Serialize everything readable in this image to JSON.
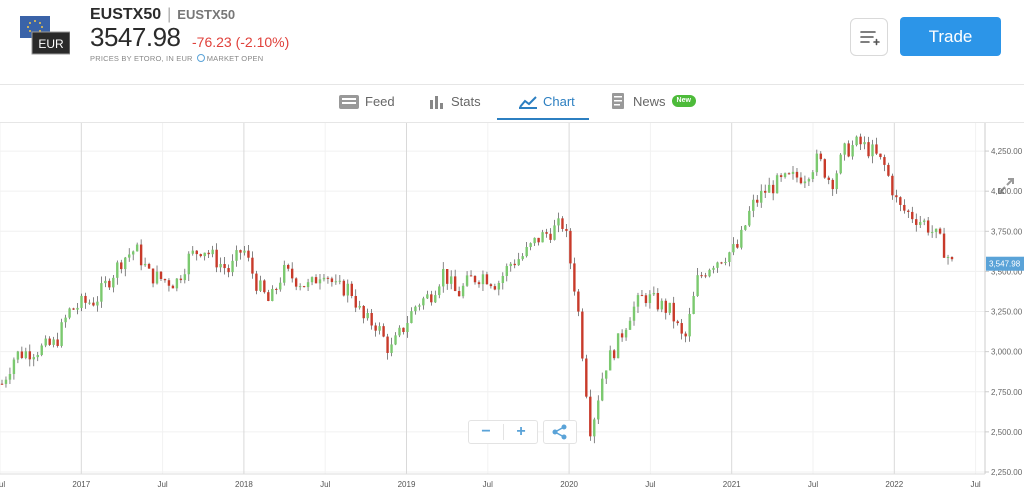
{
  "header": {
    "flag_label": "EUR",
    "symbol": "EUSTX50",
    "separator": "|",
    "symbol_secondary": "EUSTX50",
    "price": "3547.98",
    "change": "-76.23 (-2.10%)",
    "subtitle_prefix": "PRICES BY ETORO, IN EUR",
    "market_status": "MARKET OPEN",
    "trade_label": "Trade"
  },
  "tabs": [
    {
      "label": "Feed",
      "icon": "feed-icon"
    },
    {
      "label": "Stats",
      "icon": "stats-icon"
    },
    {
      "label": "Chart",
      "icon": "chart-icon",
      "active": true
    },
    {
      "label": "News",
      "icon": "news-icon",
      "badge": "New"
    }
  ],
  "colors": {
    "up": "#7bc96f",
    "down": "#c83a2a",
    "accent": "#2c95e8",
    "tab_active": "#2c7fc1",
    "price_tag": "#5aa3d8"
  },
  "chart_data": {
    "type": "candlestick",
    "y_ticks": [
      "4,250.00",
      "4,000.00",
      "3,750.00",
      "3,500.00",
      "3,250.00",
      "3,000.00",
      "2,750.00",
      "2,500.00",
      "2,250.00"
    ],
    "x_ticks": [
      "Jul",
      "2017",
      "Jul",
      "2018",
      "Jul",
      "2019",
      "Jul",
      "2020",
      "Jul",
      "2021",
      "Jul",
      "2022",
      "Jul"
    ],
    "ylim": [
      2250,
      4400
    ],
    "last_price_label": "3,547.98",
    "series": [
      {
        "date": "2016-07",
        "value": 2800
      },
      {
        "date": "2016-08",
        "value": 2980
      },
      {
        "date": "2016-09",
        "value": 3000
      },
      {
        "date": "2016-10",
        "value": 3020
      },
      {
        "date": "2016-11",
        "value": 3050
      },
      {
        "date": "2016-12",
        "value": 3250
      },
      {
        "date": "2017-01",
        "value": 3300
      },
      {
        "date": "2017-02",
        "value": 3320
      },
      {
        "date": "2017-03",
        "value": 3450
      },
      {
        "date": "2017-04",
        "value": 3580
      },
      {
        "date": "2017-05",
        "value": 3640
      },
      {
        "date": "2017-06",
        "value": 3480
      },
      {
        "date": "2017-07",
        "value": 3450
      },
      {
        "date": "2017-08",
        "value": 3430
      },
      {
        "date": "2017-09",
        "value": 3590
      },
      {
        "date": "2017-10",
        "value": 3650
      },
      {
        "date": "2017-11",
        "value": 3570
      },
      {
        "date": "2017-12",
        "value": 3500
      },
      {
        "date": "2018-01",
        "value": 3650
      },
      {
        "date": "2018-02",
        "value": 3430
      },
      {
        "date": "2018-03",
        "value": 3300
      },
      {
        "date": "2018-04",
        "value": 3500
      },
      {
        "date": "2018-05",
        "value": 3450
      },
      {
        "date": "2018-06",
        "value": 3400
      },
      {
        "date": "2018-07",
        "value": 3520
      },
      {
        "date": "2018-08",
        "value": 3390
      },
      {
        "date": "2018-09",
        "value": 3400
      },
      {
        "date": "2018-10",
        "value": 3200
      },
      {
        "date": "2018-11",
        "value": 3170
      },
      {
        "date": "2018-12",
        "value": 3000
      },
      {
        "date": "2019-01",
        "value": 3150
      },
      {
        "date": "2019-02",
        "value": 3300
      },
      {
        "date": "2019-03",
        "value": 3350
      },
      {
        "date": "2019-04",
        "value": 3500
      },
      {
        "date": "2019-05",
        "value": 3350
      },
      {
        "date": "2019-06",
        "value": 3450
      },
      {
        "date": "2019-07",
        "value": 3480
      },
      {
        "date": "2019-08",
        "value": 3420
      },
      {
        "date": "2019-09",
        "value": 3550
      },
      {
        "date": "2019-10",
        "value": 3600
      },
      {
        "date": "2019-11",
        "value": 3700
      },
      {
        "date": "2019-12",
        "value": 3750
      },
      {
        "date": "2020-01",
        "value": 3800
      },
      {
        "date": "2020-02",
        "value": 3300
      },
      {
        "date": "2020-03",
        "value": 2500
      },
      {
        "date": "2020-04",
        "value": 2900
      },
      {
        "date": "2020-05",
        "value": 3050
      },
      {
        "date": "2020-06",
        "value": 3250
      },
      {
        "date": "2020-07",
        "value": 3350
      },
      {
        "date": "2020-08",
        "value": 3300
      },
      {
        "date": "2020-09",
        "value": 3250
      },
      {
        "date": "2020-10",
        "value": 3050
      },
      {
        "date": "2020-11",
        "value": 3450
      },
      {
        "date": "2020-12",
        "value": 3550
      },
      {
        "date": "2021-01",
        "value": 3600
      },
      {
        "date": "2021-02",
        "value": 3650
      },
      {
        "date": "2021-03",
        "value": 3900
      },
      {
        "date": "2021-04",
        "value": 4000
      },
      {
        "date": "2021-05",
        "value": 4050
      },
      {
        "date": "2021-06",
        "value": 4080
      },
      {
        "date": "2021-07",
        "value": 4100
      },
      {
        "date": "2021-08",
        "value": 4200
      },
      {
        "date": "2021-09",
        "value": 4050
      },
      {
        "date": "2021-10",
        "value": 4250
      },
      {
        "date": "2021-11",
        "value": 4300
      },
      {
        "date": "2021-12",
        "value": 4250
      },
      {
        "date": "2022-01",
        "value": 4150
      },
      {
        "date": "2022-02",
        "value": 3900
      },
      {
        "date": "2022-03",
        "value": 3850
      },
      {
        "date": "2022-04",
        "value": 3800
      },
      {
        "date": "2022-05",
        "value": 3700
      },
      {
        "date": "2022-06",
        "value": 3548
      }
    ]
  }
}
